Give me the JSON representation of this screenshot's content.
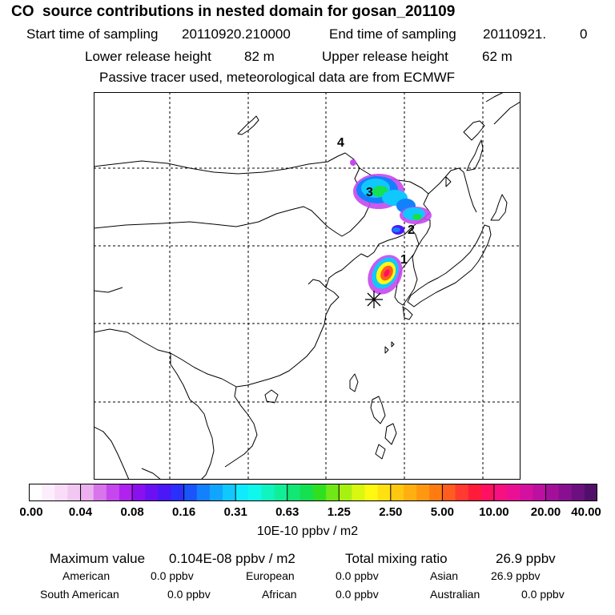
{
  "header": {
    "title": "CO  source contributions in nested domain for gosan_201109",
    "start_label": "Start time of sampling",
    "start_value": "20110920.210000",
    "end_label": "End time of sampling",
    "end_value": "20110921.",
    "end_hour": "0",
    "lower_label": "Lower release height",
    "lower_value": "82 m",
    "upper_label": "Upper release height",
    "upper_value": "62 m",
    "tracer_note": "Passive tracer used, meteorological data are from ECMWF"
  },
  "map": {
    "cluster_labels": [
      "1",
      "2",
      "3",
      "4"
    ],
    "receptor_marker": "asterisk",
    "colors": {
      "background": "#ffffff",
      "coast": "#000000",
      "grid": "#000000"
    }
  },
  "colorbar": {
    "tick_labels": [
      "0.00",
      "0.04",
      "0.08",
      "0.16",
      "0.31",
      "0.63",
      "1.25",
      "2.50",
      "5.00",
      "10.00",
      "20.00",
      "40.00"
    ],
    "colors": [
      "#ffffff",
      "#fdeefd",
      "#f8dcf8",
      "#f2c8f2",
      "#ecb0ee",
      "#d875ec",
      "#c548ee",
      "#b022ef",
      "#8a10f0",
      "#6a10f3",
      "#4a18f6",
      "#2a30fa",
      "#1a55fc",
      "#1380fd",
      "#10a5fe",
      "#10c8fe",
      "#10eafe",
      "#10f8ec",
      "#10f5c0",
      "#10ee98",
      "#12e674",
      "#14e050",
      "#30e020",
      "#70e818",
      "#a8f010",
      "#d8f810",
      "#fff810",
      "#ffe010",
      "#ffc810",
      "#ffb010",
      "#ff9810",
      "#ff7a10",
      "#ff5c20",
      "#ff3a30",
      "#ff1c3a",
      "#ff1060",
      "#f61080",
      "#ea1094",
      "#d410a0",
      "#bc10a0",
      "#a2109a",
      "#881090",
      "#6c1080",
      "#50106a"
    ],
    "units": "10E-10 ppbv / m2"
  },
  "stats": {
    "max_label": "Maximum value",
    "max_value": "0.104E-08 ppbv / m2",
    "total_label": "Total mixing ratio",
    "total_value": "26.9 ppbv",
    "contributions": [
      {
        "name": "American",
        "value": "0.0 ppbv"
      },
      {
        "name": "European",
        "value": "0.0 ppbv"
      },
      {
        "name": "Asian",
        "value": "26.9 ppbv"
      },
      {
        "name": "South American",
        "value": "0.0 ppbv"
      },
      {
        "name": "African",
        "value": "0.0 ppbv"
      },
      {
        "name": "Australian",
        "value": "0.0 ppbv"
      }
    ]
  }
}
